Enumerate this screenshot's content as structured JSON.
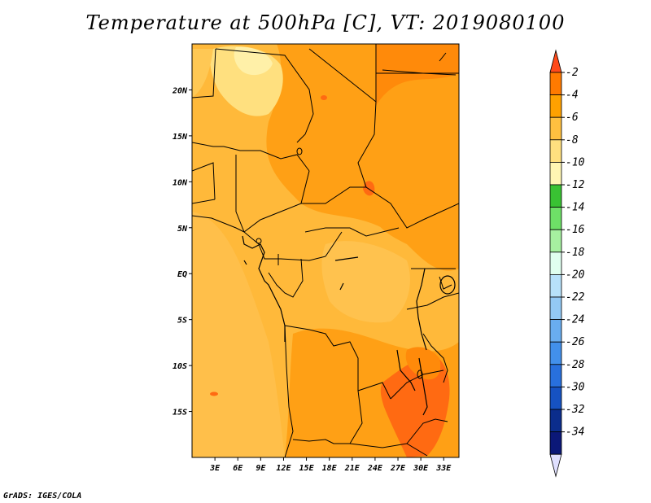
{
  "title": "Temperature at 500hPa [C], VT: 2019080100",
  "credit": "GrADS: IGES/COLA",
  "map": {
    "lon_range": [
      0,
      35
    ],
    "lat_range": [
      -20,
      25
    ],
    "lon_ticks": [
      "3E",
      "6E",
      "9E",
      "12E",
      "15E",
      "18E",
      "21E",
      "24E",
      "27E",
      "30E",
      "33E"
    ],
    "lat_ticks": [
      "20N",
      "15N",
      "10N",
      "5N",
      "EQ",
      "5S",
      "10S",
      "15S"
    ]
  },
  "colorbar": {
    "labels": [
      "-2",
      "-4",
      "-6",
      "-8",
      "-10",
      "-12",
      "-14",
      "-16",
      "-18",
      "-20",
      "-22",
      "-24",
      "-26",
      "-28",
      "-30",
      "-32",
      "-34"
    ],
    "colors": [
      "#ff4a1a",
      "#ff7a00",
      "#ffa100",
      "#ffc040",
      "#ffe07f",
      "#fff6b3",
      "#39c233",
      "#6ee067",
      "#a6f0a0",
      "#e0ffef",
      "#b7e1fa",
      "#93c9f5",
      "#69adf0",
      "#4290eb",
      "#2870dd",
      "#1652c2",
      "#0b2d8c",
      "#0b1878",
      "#e0e0ff"
    ]
  }
}
